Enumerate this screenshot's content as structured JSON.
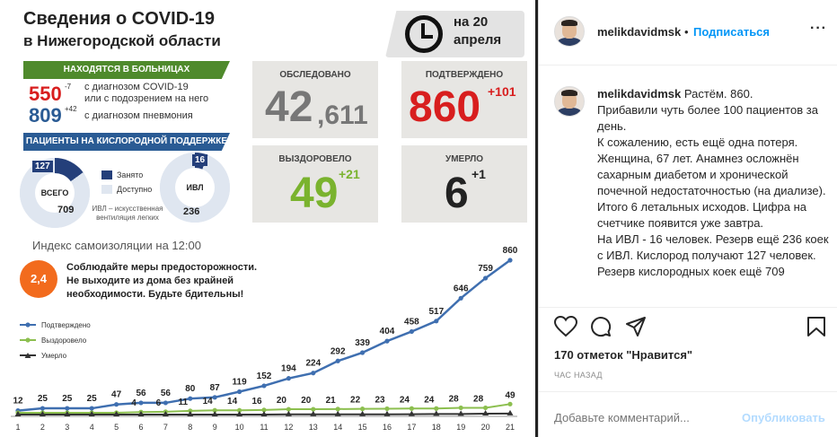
{
  "infographic": {
    "title_line1": "Сведения о COVID-19",
    "title_line2": "в Нижегородской области",
    "date_line1": "на 20",
    "date_line2": "апреля",
    "hospital_banner": "НАХОДЯТСЯ В БОЛЬНИЦАХ",
    "hosp_covid_num": "550",
    "hosp_covid_delta": "-7",
    "hosp_covid_text1": "с диагнозом COVID-19",
    "hosp_covid_text2": "или с подозрением на него",
    "hosp_pneu_num": "809",
    "hosp_pneu_delta": "+42",
    "hosp_pneu_text": "с диагнозом пневмония",
    "oxygen_banner": "ПАЦИЕНТЫ НА КИСЛОРОДНОЙ ПОДДЕРЖКЕ",
    "total_label": "ВСЕГО",
    "total_occupied": "127",
    "total_available": "709",
    "ivl_label": "ИВЛ",
    "ivl_occupied": "16",
    "ivl_available": "236",
    "legend_occupied": "Занято",
    "legend_available": "Доступно",
    "ivl_note1": "ИВЛ – искусственная",
    "ivl_note2": "вентиляция легких",
    "examined_label": "ОБСЛЕДОВАНО",
    "examined_value_main": "42",
    "examined_value_tail": ",611",
    "confirmed_label": "ПОДТВЕРЖДЕНО",
    "confirmed_value": "860",
    "confirmed_delta": "+101",
    "recovered_label": "ВЫЗДОРОВЕЛО",
    "recovered_value": "49",
    "recovered_delta": "+21",
    "died_label": "УМЕРЛО",
    "died_value": "6",
    "died_delta": "+1",
    "self_isolation": "Индекс самоизоляции на 12:00",
    "self_isolation_value": "2,4",
    "warning_line1": "Соблюдайте меры предосторожности.",
    "warning_line2": "Не выходите из дома без крайней",
    "warning_line3": "необходимости. Будьте бдительны!",
    "colors": {
      "green": "#4f8a2c",
      "blue": "#2a5b94",
      "red": "#d81e1e",
      "lime": "#7ab32e",
      "orange": "#f26b1d"
    }
  },
  "chart_data": {
    "type": "line",
    "x": [
      1,
      2,
      3,
      4,
      5,
      6,
      7,
      8,
      9,
      10,
      11,
      12,
      13,
      14,
      15,
      16,
      17,
      18,
      19,
      20,
      21
    ],
    "series": [
      {
        "name": "Подтверждено",
        "color": "#3f6fb0",
        "values": [
          12,
          25,
          25,
          25,
          47,
          56,
          56,
          80,
          87,
          119,
          152,
          194,
          224,
          292,
          339,
          404,
          458,
          517,
          646,
          759,
          860
        ]
      },
      {
        "name": "Выздоровело",
        "color": "#8cbf4f",
        "values": [
          0,
          0,
          0,
          0,
          0,
          4,
          6,
          11,
          14,
          14,
          16,
          20,
          20,
          21,
          22,
          23,
          24,
          24,
          28,
          28,
          49
        ]
      },
      {
        "name": "Умерло",
        "color": "#333333",
        "values": [
          0,
          0,
          0,
          0,
          0,
          0,
          0,
          0,
          0,
          0,
          0,
          1,
          1,
          1,
          1,
          1,
          2,
          3,
          3,
          5,
          6
        ]
      }
    ],
    "confirmed_labels": [
      "12",
      "25",
      "25",
      "25",
      "47",
      "56",
      "56",
      "80",
      "87",
      "119",
      "152",
      "194",
      "224",
      "292",
      "339",
      "404",
      "458",
      "517",
      "646",
      "759",
      "860"
    ],
    "recovered_labels": [
      "",
      "",
      "",
      "",
      "",
      "4",
      "6",
      "11",
      "14",
      "14",
      "16",
      "20",
      "20",
      "21",
      "22",
      "23",
      "24",
      "24",
      "28",
      "28",
      "49"
    ],
    "ylim": [
      0,
      900
    ],
    "legend_position": "left"
  },
  "panel": {
    "username": "melikdavidmsk",
    "dot": "•",
    "follow_label": "Подписаться",
    "more_label": "···",
    "caption_user": "melikdavidmsk",
    "caption_lines": [
      "Растём. 860.",
      "Прибавили чуть более 100 пациентов за день.",
      "К сожалению, есть ещё одна потеря. Женщина, 67 лет. Анамнез осложнён сахарным диабетом и хронической почечной недостаточностью (на диализе). Итого 6 летальных исходов. Цифра на счетчике появится уже завтра.",
      "На ИВЛ - 16 человек. Резерв ещё 236 коек с ИВЛ. Кислород получают 127 человек.",
      "Резерв кислородных коек ещё 709"
    ],
    "likes": "170 отметок \"Нравится\"",
    "time_ago": "ЧАС НАЗАД",
    "comment_placeholder": "Добавьте комментарий...",
    "publish_label": "Опубликовать",
    "icons": [
      "heart-icon",
      "comment-icon",
      "share-icon",
      "bookmark-icon",
      "more-icon"
    ]
  }
}
